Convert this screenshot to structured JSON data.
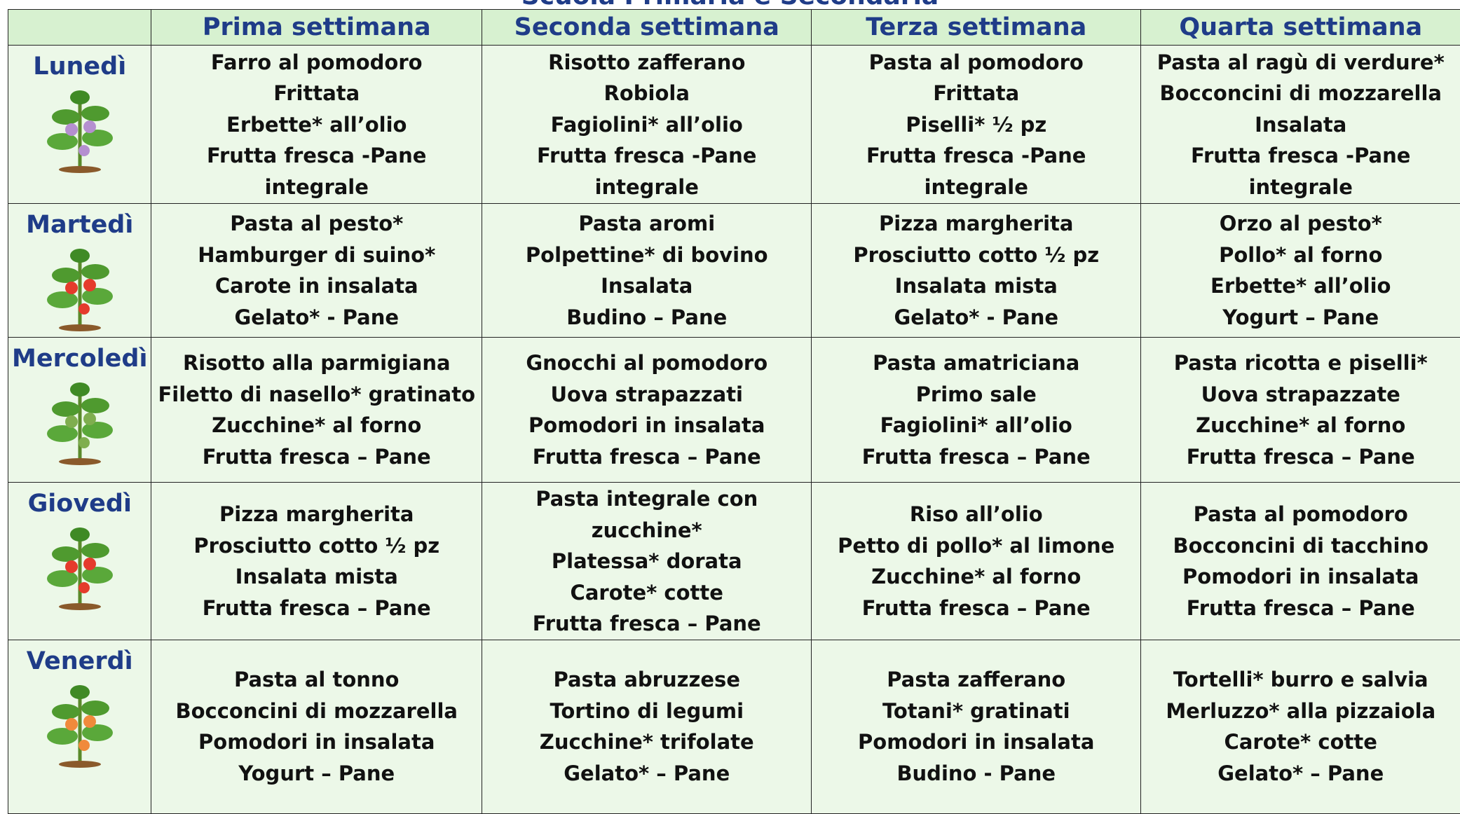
{
  "header": {
    "title": "Scuola Primaria e Secondaria"
  },
  "table": {
    "columns": [
      "Prima settimana",
      "Seconda settimana",
      "Terza settimana",
      "Quarta settimana"
    ],
    "rows": [
      {
        "day": "Lunedì",
        "cells": [
          [
            "Farro al pomodoro",
            "Frittata",
            "Erbette* all’olio",
            "Frutta fresca -Pane",
            "integrale"
          ],
          [
            "Risotto zafferano",
            "Robiola",
            "Fagiolini* all’olio",
            "Frutta fresca -Pane",
            "integrale"
          ],
          [
            "Pasta al pomodoro",
            "Frittata",
            "Piselli* ½ pz",
            "Frutta fresca -Pane",
            "integrale"
          ],
          [
            "Pasta al ragù di verdure*",
            "Bocconcini di mozzarella",
            "Insalata",
            "Frutta fresca -Pane",
            "integrale"
          ]
        ]
      },
      {
        "day": "Martedì",
        "cells": [
          [
            "Pasta al pesto*",
            "Hamburger di suino*",
            "Carote in insalata",
            "Gelato* - Pane"
          ],
          [
            "Pasta aromi",
            "Polpettine* di bovino",
            "Insalata",
            "Budino – Pane"
          ],
          [
            "Pizza margherita",
            "Prosciutto cotto ½ pz",
            "Insalata mista",
            "Gelato* - Pane"
          ],
          [
            "Orzo al pesto*",
            "Pollo* al forno",
            "Erbette* all’olio",
            "Yogurt – Pane"
          ]
        ]
      },
      {
        "day": "Mercoledì",
        "cells": [
          [
            "Risotto alla parmigiana",
            "Filetto di nasello* gratinato",
            "Zucchine* al forno",
            "Frutta fresca – Pane"
          ],
          [
            "Gnocchi al pomodoro",
            "Uova strapazzati",
            "Pomodori in insalata",
            "Frutta fresca – Pane"
          ],
          [
            "Pasta amatriciana",
            "Primo sale",
            "Fagiolini* all’olio",
            "Frutta fresca – Pane"
          ],
          [
            "Pasta ricotta e piselli*",
            "Uova strapazzate",
            "Zucchine* al forno",
            "Frutta fresca – Pane"
          ]
        ]
      },
      {
        "day": "Giovedì",
        "cells": [
          [
            "Pizza margherita",
            "Prosciutto cotto ½ pz",
            "Insalata mista",
            "Frutta fresca – Pane"
          ],
          [
            "Pasta integrale con",
            "zucchine*",
            "Platessa* dorata",
            "Carote* cotte",
            "Frutta fresca – Pane"
          ],
          [
            "Riso all’olio",
            "Petto di pollo* al limone",
            "Zucchine* al forno",
            "Frutta fresca – Pane"
          ],
          [
            "Pasta al pomodoro",
            "Bocconcini di tacchino",
            "Pomodori in insalata",
            "Frutta fresca – Pane"
          ]
        ]
      },
      {
        "day": "Venerdì",
        "cells": [
          [
            "Pasta al tonno",
            "Bocconcini di mozzarella",
            "Pomodori in insalata",
            "Yogurt – Pane"
          ],
          [
            "Pasta abruzzese",
            "Tortino di legumi",
            "Zucchine* trifolate",
            "Gelato* – Pane"
          ],
          [
            "Pasta zafferano",
            "Totani* gratinati",
            "Pomodori in insalata",
            "Budino - Pane"
          ],
          [
            "Tortelli* burro e salvia",
            "Merluzzo* alla pizzaiola",
            "Carote* cotte",
            "Gelato* – Pane"
          ]
        ]
      }
    ]
  }
}
